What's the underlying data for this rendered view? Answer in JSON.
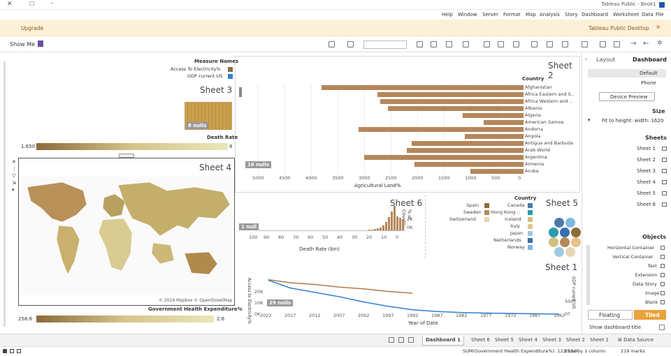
{
  "window": {
    "title": "Tableau Public - Book1"
  },
  "menu": [
    "File",
    "Data",
    "Worksheet",
    "Dashboard",
    "Story",
    "Analysis",
    "Map",
    "Format",
    "Server",
    "Window",
    "Help"
  ],
  "banner": {
    "app_name": "Tableau Public Desktop",
    "upgrade_label": "Upgrade"
  },
  "toolbar": {
    "show_me_label": "Show Me"
  },
  "side_panel": {
    "tabs": [
      "Dashboard",
      "Layout"
    ],
    "device_options": [
      "Default",
      "Phone"
    ],
    "device_preview_label": "Device Preview",
    "size_heading": "Size",
    "size_value": "Fit to height: width: 1620",
    "sheets_heading": "Sheets",
    "sheets": [
      "Sheet 1",
      "Sheet 2",
      "Sheet 3",
      "Sheet 4",
      "Sheet 5",
      "Sheet 6"
    ],
    "objects_heading": "Objects",
    "objects": [
      "Horizontal Container",
      "Vertical Container",
      "Text",
      "Extension",
      "Data Story",
      "Image",
      "Blank"
    ],
    "tiled_label": "Tiled",
    "floating_label": "Floating",
    "show_title_label": "Show dashboard title"
  },
  "sheet2": {
    "title": "Sheet 2",
    "header": "Country",
    "nulls": "16 nulls",
    "axis_title": "Agricultural Land%",
    "colors": {
      "bar": "#b5865a"
    }
  },
  "chart_data": [
    {
      "type": "bar",
      "title": "Sheet 2",
      "xlabel": "Agricultural Land%",
      "categories": [
        "Afghanistan",
        "Africa Eastern and S..",
        "Africa Western and ..",
        "Albania",
        "Algeria",
        "American Samoa",
        "Andorra",
        "Angola",
        "Antigua and Barbuda",
        "Arab World",
        "Argentina",
        "Armenia",
        "Aruba"
      ],
      "values": [
        3800,
        2750,
        2700,
        2550,
        1150,
        750,
        3100,
        1100,
        2100,
        2200,
        3000,
        2050,
        1000
      ],
      "xlim": [
        0,
        5000
      ],
      "ticks": [
        "0",
        "500",
        "1000",
        "1500",
        "2000",
        "2500",
        "3000",
        "3500",
        "4000",
        "4500",
        "5000"
      ]
    },
    {
      "type": "bar",
      "title": "Sheet 6",
      "xlabel": "Death Rate (bin)",
      "ylabel": "% of Country",
      "x": [
        8,
        9,
        10,
        11,
        12,
        13,
        14,
        15,
        16,
        17,
        18,
        19,
        20
      ],
      "values": [
        1800,
        2000,
        2200,
        3900,
        3000,
        2100,
        1300,
        800,
        500,
        300,
        200,
        120,
        80
      ],
      "ylim": [
        0,
        4000
      ],
      "xticks": [
        "0",
        "10",
        "20",
        "30",
        "40",
        "50",
        "60",
        "70",
        "80",
        "90",
        "100"
      ],
      "yticks": [
        "0K",
        "2K"
      ]
    },
    {
      "type": "line",
      "title": "Sheet 1",
      "xlabel": "Year of Date",
      "ylabel": "Access to Electricity%",
      "y2label": "GDP current US",
      "x": [
        1962,
        1967,
        1972,
        1977,
        1982,
        1987,
        1992,
        1997,
        2002,
        2007,
        2012,
        2017,
        2022
      ],
      "series": [
        {
          "name": "Access To Electricity%",
          "values": [
            null,
            null,
            null,
            null,
            null,
            null,
            12000,
            13000,
            14500,
            15500,
            17000,
            18000,
            20000
          ]
        },
        {
          "name": "GDP current US",
          "values": [
            0,
            200,
            400,
            600,
            900,
            1500,
            2500,
            4500,
            7000,
            10000,
            12500,
            15000,
            20000
          ]
        }
      ],
      "yticks": [
        "0K",
        "10K",
        "20K"
      ],
      "y2ticks": [
        "0T",
        "500T"
      ]
    }
  ],
  "sheet3": {
    "title": "Sheet 3",
    "nulls": "8 nulls",
    "legend_title": "Death Rate",
    "legend_min": "1.650",
    "legend_max": "8"
  },
  "measure_legend": {
    "title": "Measure Names",
    "items": [
      {
        "label": "Access To Electricity%",
        "color": "#8b6f47"
      },
      {
        "label": "GDP current US",
        "color": "#2f7fd6"
      }
    ]
  },
  "sheet4": {
    "title": "Sheet 4",
    "attribution": "© 2024 Mapbox © OpenStreetMap"
  },
  "map_legend": {
    "title": "Government Health Expenditure%",
    "min": "2.6",
    "max": "258.6"
  },
  "sheet5": {
    "title": "Sheet 5",
    "legend_title": "Country",
    "items_col1": [
      {
        "label": "Canada",
        "color": "#4e79a7"
      },
      {
        "label": "Hong Kong ..",
        "color": "#2a9bb0"
      },
      {
        "label": "Iceland",
        "color": "#cfc27e"
      },
      {
        "label": "Italy",
        "color": "#e7c28d"
      },
      {
        "label": "Japan",
        "color": "#9ec9e2"
      },
      {
        "label": "Netherlands",
        "color": "#3a6db0"
      },
      {
        "label": "Norway",
        "color": "#7fb8e0"
      }
    ],
    "items_col2": [
      {
        "label": "Spain",
        "color": "#8b6d3a"
      },
      {
        "label": "Sweden",
        "color": "#b48a5a"
      },
      {
        "label": "Switzerland",
        "color": "#e7d5b3"
      }
    ]
  },
  "sheet6": {
    "title": "Sheet 6",
    "nulls": "1 null",
    "axis_title": "Death Rate (bin)",
    "y_axis": "% of Country"
  },
  "sheet1": {
    "title": "Sheet 1",
    "nulls": "29 nulls",
    "axis_title": "Year of Date",
    "left_axis": "Access to Electricity%",
    "right_axis": "GDP current US"
  },
  "bottom_tabs": {
    "data_source": "Data Source",
    "sheets": [
      "Sheet 1",
      "Sheet 2",
      "Sheet 3",
      "Sheet 4",
      "Sheet 5",
      "Sheet 6"
    ],
    "dashboard": "Dashboard 1"
  },
  "status": {
    "marks": "219 marks",
    "rows": "1 row by 1 column",
    "sum": "SUM(Government Health Expenditure%): 12,853.9"
  }
}
